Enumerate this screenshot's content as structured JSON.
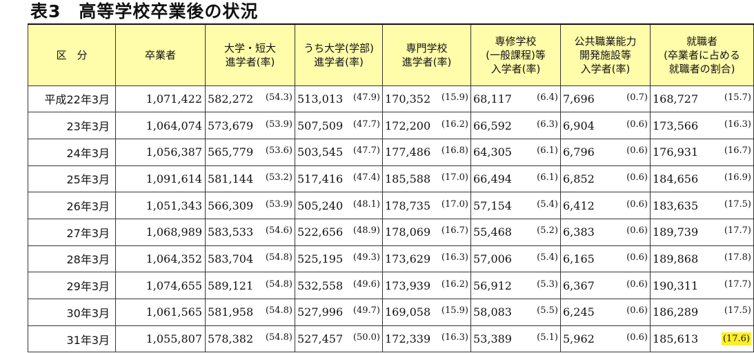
{
  "title": "表3　高等学校卒業後の状況",
  "headers": [
    "区　分",
    "卒業者",
    "大学・短大\n進学者(率)",
    "うち大学(学部)\n進学者(率)",
    "専門学校\n進学者(率)",
    "専修学校\n(一般課程)等\n入学者(率)",
    "公共職業能力\n開発施設等\n入学者(率)",
    "就職者\n(卒業者に占める\n就職者の割合)"
  ],
  "rows": [
    {
      "label": "平成22年3月",
      "graduates": "1,071,422",
      "univ": "582,272",
      "univ_r": "(54.3)",
      "univ4": "513,013",
      "univ4_r": "(47.9)",
      "senmon": "170,352",
      "senmon_r": "(15.9)",
      "senshu": "68,117",
      "senshu_r": "(6.4)",
      "kokyo": "7,696",
      "kokyo_r": "(0.7)",
      "shushoku": "168,727",
      "shushoku_r": "(15.7)"
    },
    {
      "label": "23年3月",
      "graduates": "1,064,074",
      "univ": "573,679",
      "univ_r": "(53.9)",
      "univ4": "507,509",
      "univ4_r": "(47.7)",
      "senmon": "172,200",
      "senmon_r": "(16.2)",
      "senshu": "66,592",
      "senshu_r": "(6.3)",
      "kokyo": "6,904",
      "kokyo_r": "(0.6)",
      "shushoku": "173,566",
      "shushoku_r": "(16.3)"
    },
    {
      "label": "24年3月",
      "graduates": "1,056,387",
      "univ": "565,779",
      "univ_r": "(53.6)",
      "univ4": "503,545",
      "univ4_r": "(47.7)",
      "senmon": "177,486",
      "senmon_r": "(16.8)",
      "senshu": "64,305",
      "senshu_r": "(6.1)",
      "kokyo": "6,796",
      "kokyo_r": "(0.6)",
      "shushoku": "176,931",
      "shushoku_r": "(16.7)"
    },
    {
      "label": "25年3月",
      "graduates": "1,091,614",
      "univ": "581,144",
      "univ_r": "(53.2)",
      "univ4": "517,416",
      "univ4_r": "(47.4)",
      "senmon": "185,588",
      "senmon_r": "(17.0)",
      "senshu": "66,494",
      "senshu_r": "(6.1)",
      "kokyo": "6,852",
      "kokyo_r": "(0.6)",
      "shushoku": "184,656",
      "shushoku_r": "(16.9)"
    },
    {
      "label": "26年3月",
      "graduates": "1,051,343",
      "univ": "566,309",
      "univ_r": "(53.9)",
      "univ4": "505,240",
      "univ4_r": "(48.1)",
      "senmon": "178,735",
      "senmon_r": "(17.0)",
      "senshu": "57,154",
      "senshu_r": "(5.4)",
      "kokyo": "6,412",
      "kokyo_r": "(0.6)",
      "shushoku": "183,635",
      "shushoku_r": "(17.5)"
    },
    {
      "label": "27年3月",
      "graduates": "1,068,989",
      "univ": "583,533",
      "univ_r": "(54.6)",
      "univ4": "522,656",
      "univ4_r": "(48.9)",
      "senmon": "178,069",
      "senmon_r": "(16.7)",
      "senshu": "55,468",
      "senshu_r": "(5.2)",
      "kokyo": "6,383",
      "kokyo_r": "(0.6)",
      "shushoku": "189,739",
      "shushoku_r": "(17.7)"
    },
    {
      "label": "28年3月",
      "graduates": "1,064,352",
      "univ": "583,704",
      "univ_r": "(54.8)",
      "univ4": "525,195",
      "univ4_r": "(49.3)",
      "senmon": "173,629",
      "senmon_r": "(16.3)",
      "senshu": "57,006",
      "senshu_r": "(5.4)",
      "kokyo": "6,165",
      "kokyo_r": "(0.6)",
      "shushoku": "189,868",
      "shushoku_r": "(17.8)"
    },
    {
      "label": "29年3月",
      "graduates": "1,074,655",
      "univ": "589,121",
      "univ_r": "(54.8)",
      "univ4": "532,558",
      "univ4_r": "(49.6)",
      "senmon": "173,939",
      "senmon_r": "(16.2)",
      "senshu": "56,912",
      "senshu_r": "(5.3)",
      "kokyo": "6,367",
      "kokyo_r": "(0.6)",
      "shushoku": "190,311",
      "shushoku_r": "(17.7)"
    },
    {
      "label": "30年3月",
      "graduates": "1,061,565",
      "univ": "581,958",
      "univ_r": "(54.8)",
      "univ4": "527,996",
      "univ4_r": "(49.7)",
      "senmon": "169,058",
      "senmon_r": "(15.9)",
      "senshu": "58,083",
      "senshu_r": "(5.5)",
      "kokyo": "6,245",
      "kokyo_r": "(0.6)",
      "shushoku": "186,289",
      "shushoku_r": "(17.5)"
    },
    {
      "label": "31年3月",
      "graduates": "1,055,807",
      "univ": "578,382",
      "univ_r": "(54.8)",
      "univ4": "527,457",
      "univ4_r": "(50.0)",
      "senmon": "172,339",
      "senmon_r": "(16.3)",
      "senshu": "53,389",
      "senshu_r": "(5.1)",
      "kokyo": "5,962",
      "kokyo_r": "(0.6)",
      "shushoku": "185,613",
      "shushoku_r": "(17.6)"
    }
  ],
  "colors": {
    "header_bg": "#fffcaa",
    "highlight": "#ffee2e"
  }
}
